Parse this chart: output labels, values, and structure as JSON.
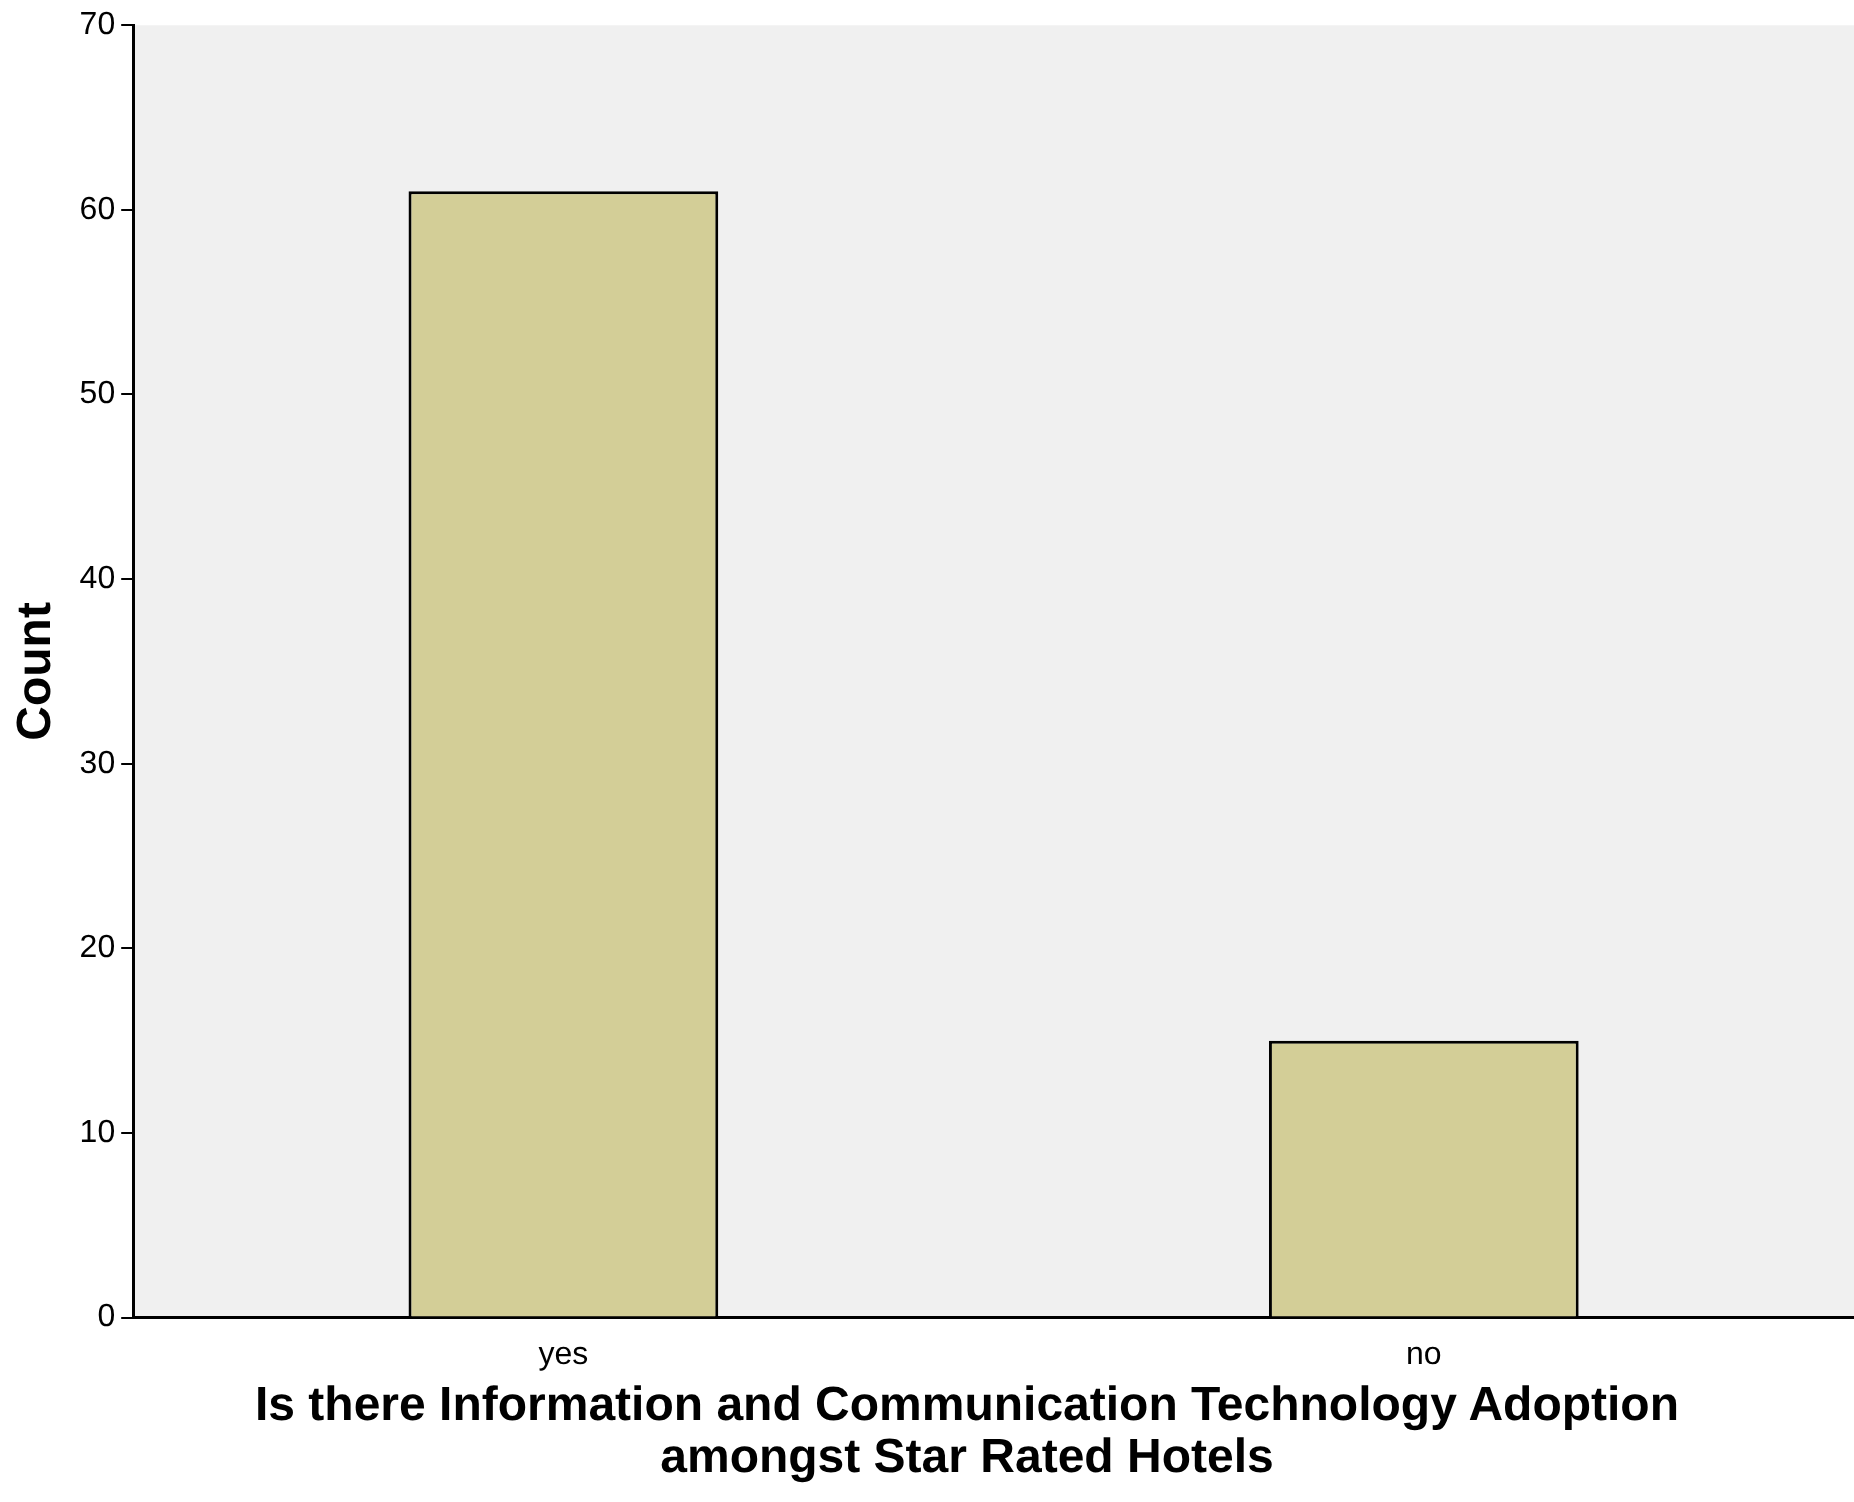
{
  "chart_data": {
    "type": "bar",
    "xlabel": "Is there Information and Communication Technology Adoption amongst Star Rated Hotels",
    "ylabel": "Count",
    "categories": [
      "yes",
      "no"
    ],
    "values": [
      61,
      15
    ],
    "color": "#d3ce97",
    "ylim": [
      0,
      70
    ],
    "yticks": [
      0,
      10,
      20,
      30,
      40,
      50,
      60,
      70
    ],
    "grid": false,
    "legend": false
  }
}
